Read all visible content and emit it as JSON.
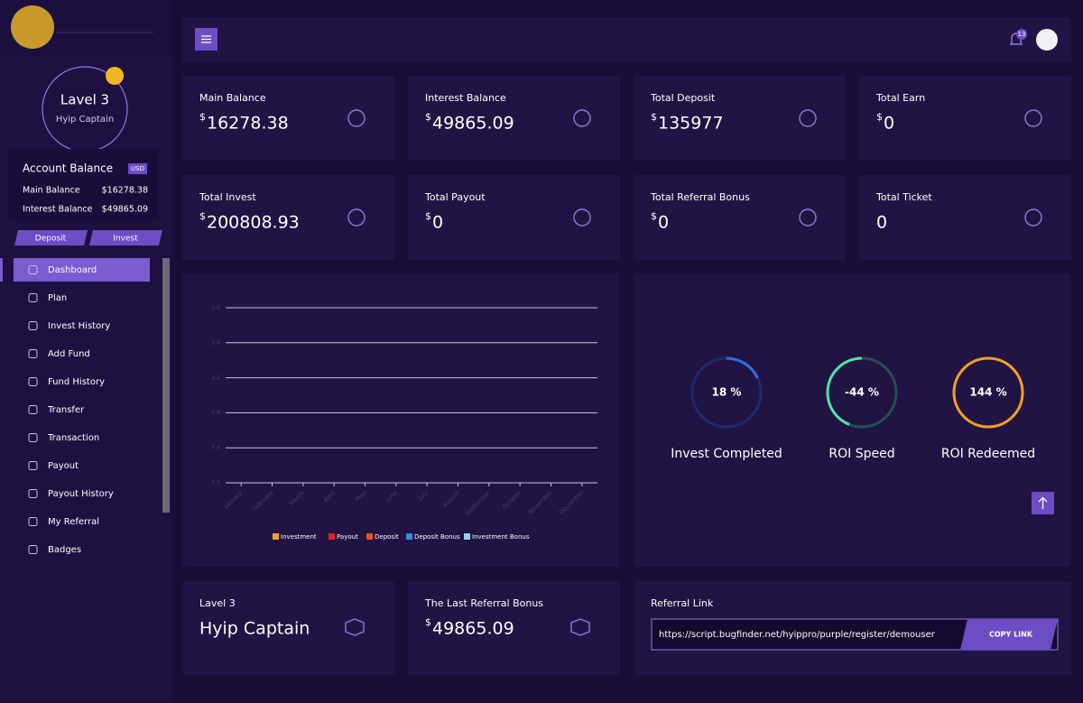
{
  "sidebar": {
    "level": "Lavel 3",
    "rank": "Hyip Captain",
    "account_balance": {
      "title": "Account Balance",
      "currency": "USD",
      "rows": [
        {
          "label": "Main Balance",
          "value": "$16278.38"
        },
        {
          "label": "Interest Balance",
          "value": "$49865.09"
        }
      ]
    },
    "buttons": [
      "Deposit",
      "Invest"
    ],
    "menu": [
      "Dashboard",
      "Plan",
      "Invest History",
      "Add Fund",
      "Fund History",
      "Transfer",
      "Transaction",
      "Payout",
      "Payout History",
      "My Referral",
      "Badges"
    ]
  },
  "header": {
    "notification_count": "13"
  },
  "stat_cards": [
    {
      "label": "Main Balance",
      "currency": "$",
      "amount": "16278.38"
    },
    {
      "label": "Interest Balance",
      "currency": "$",
      "amount": "49865.09"
    },
    {
      "label": "Total Deposit",
      "currency": "$",
      "amount": "135977"
    },
    {
      "label": "Total Earn",
      "currency": "$",
      "amount": "0"
    },
    {
      "label": "Total Invest",
      "currency": "$",
      "amount": "200808.93"
    },
    {
      "label": "Total Payout",
      "currency": "$",
      "amount": "0"
    },
    {
      "label": "Total Referral Bonus",
      "currency": "$",
      "amount": "0"
    },
    {
      "label": "Total Ticket",
      "amount": "0"
    }
  ],
  "chart_data": {
    "type": "line",
    "categories": [
      "January",
      "February",
      "March",
      "April",
      "May",
      "June",
      "July",
      "August",
      "September",
      "October",
      "November",
      "December"
    ],
    "series": [
      {
        "name": "Investment",
        "color": "#f4a11f"
      },
      {
        "name": "Payout",
        "color": "#e02424"
      },
      {
        "name": "Deposit",
        "color": "#f04e1c"
      },
      {
        "name": "Deposit Bonus",
        "color": "#2f8fd8"
      },
      {
        "name": "Investment Bonus",
        "color": "#8fd0f5"
      }
    ],
    "ylim": [
      0,
      2
    ],
    "yticks": [
      {
        "value": 0,
        "label": "0.0"
      },
      0.4,
      0.8,
      1.2,
      1.6,
      {
        "value": 2,
        "label": "2.0"
      }
    ],
    "grid": true
  },
  "gauges": [
    {
      "value": 18,
      "label": "18 %",
      "name": "Invest Completed",
      "color": "#2f6fe0",
      "track": "#1f2a6a"
    },
    {
      "value": -44,
      "label": "-44 %",
      "name": "ROI Speed",
      "color": "#4fe3a8",
      "track": "#245050"
    },
    {
      "value": 144,
      "label": "144 %",
      "name": "ROI Redeemed",
      "color": "#f4a11f",
      "track": "#5a3a2a"
    }
  ],
  "bottom": {
    "level_card": {
      "label": "Lavel 3",
      "value": "Hyip Captain"
    },
    "referral_bonus": {
      "label": "The Last Referral Bonus",
      "currency": "$",
      "amount": "49865.09"
    },
    "referral_link": {
      "label": "Referral Link",
      "url": "https://script.bugfinder.net/hyippro/purple/register/demouser",
      "button": "COPY LINK"
    }
  }
}
